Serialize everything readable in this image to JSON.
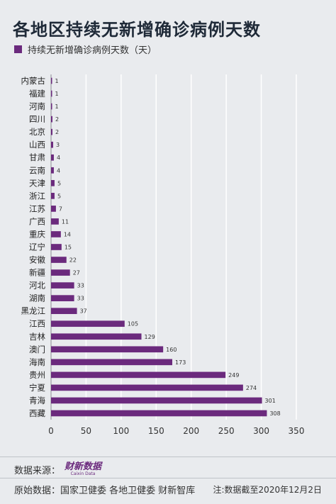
{
  "title": "各地区持续无新增确诊病例天数",
  "legend": {
    "label": "持续无新增确诊病例天数（天）",
    "color": "#6b2a7d"
  },
  "chart_data": {
    "type": "bar",
    "orientation": "horizontal",
    "title": "各地区持续无新增确诊病例天数",
    "categories": [
      "内蒙古",
      "福建",
      "河南",
      "四川",
      "北京",
      "山西",
      "甘肃",
      "云南",
      "天津",
      "浙江",
      "江苏",
      "广西",
      "重庆",
      "辽宁",
      "安徽",
      "新疆",
      "河北",
      "湖南",
      "黑龙江",
      "江西",
      "吉林",
      "澳门",
      "海南",
      "贵州",
      "宁夏",
      "青海",
      "西藏"
    ],
    "series": [
      {
        "name": "持续无新增确诊病例天数（天）",
        "values": [
          1,
          1,
          1,
          2,
          2,
          3,
          4,
          4,
          5,
          5,
          7,
          11,
          14,
          15,
          22,
          27,
          33,
          33,
          37,
          105,
          129,
          160,
          173,
          249,
          274,
          301,
          308
        ]
      }
    ],
    "xlim": [
      0,
      350
    ],
    "xticks": [
      0,
      50,
      100,
      150,
      200,
      250,
      300,
      350
    ],
    "grid": true,
    "legend_position": "top-left",
    "bar_color": "#6b2a7d"
  },
  "footer": {
    "source_label": "数据来源：",
    "brand": "财新数据",
    "brand_sub": "Caixin Data",
    "origin_label": "原始数据：",
    "origin_text": "国家卫健委  各地卫健委  财新智库",
    "note": "注:数据截至2020年12月2日"
  }
}
